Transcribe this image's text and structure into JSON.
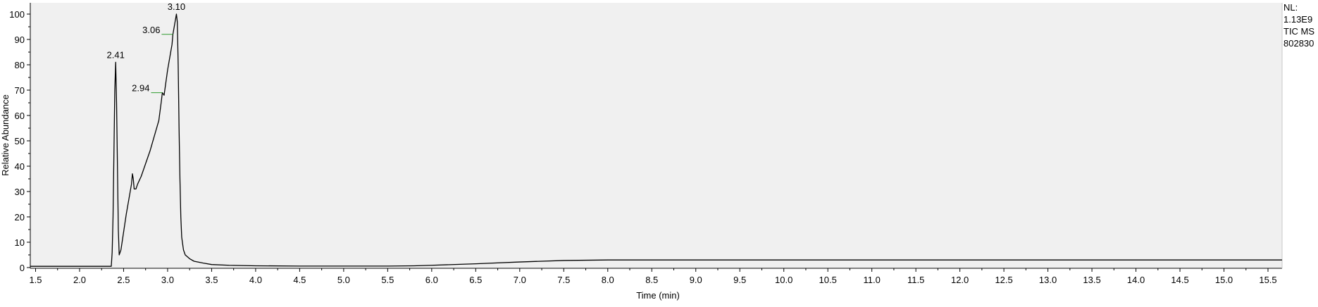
{
  "chart_data": {
    "type": "line",
    "xlabel": "Time (min)",
    "ylabel": "Relative Abundance",
    "xlim": [
      1.44,
      15.66
    ],
    "ylim": [
      0,
      100
    ],
    "x_ticks": [
      "1.5",
      "2.0",
      "2.5",
      "3.0",
      "3.5",
      "4.0",
      "4.5",
      "5.0",
      "5.5",
      "6.0",
      "6.5",
      "7.0",
      "7.5",
      "8.0",
      "8.5",
      "9.0",
      "9.5",
      "10.0",
      "10.5",
      "11.0",
      "11.5",
      "12.0",
      "12.5",
      "13.0",
      "13.5",
      "14.0",
      "14.5",
      "15.0",
      "15.5"
    ],
    "y_ticks": [
      "0",
      "10",
      "20",
      "30",
      "40",
      "50",
      "60",
      "70",
      "80",
      "90",
      "100"
    ],
    "info_lines": [
      "NL:",
      "1.13E9",
      "TIC  MS",
      "802830"
    ],
    "peak_labels": [
      {
        "text": "2.41",
        "x": 2.41,
        "y": 81
      },
      {
        "text": "2.94",
        "x": 2.94,
        "y": 69
      },
      {
        "text": "3.06",
        "x": 3.06,
        "y": 92
      },
      {
        "text": "3.10",
        "x": 3.1,
        "y": 100
      }
    ],
    "series": [
      {
        "color": "#000000",
        "x": [
          1.44,
          2.36,
          2.37,
          2.38,
          2.39,
          2.4,
          2.41,
          2.42,
          2.43,
          2.44,
          2.45,
          2.47,
          2.5,
          2.53,
          2.56,
          2.59,
          2.6,
          2.61,
          2.62,
          2.64,
          2.66,
          2.7,
          2.75,
          2.8,
          2.85,
          2.9,
          2.93,
          2.94,
          2.96,
          3.0,
          3.03,
          3.05,
          3.06,
          3.08,
          3.1,
          3.11,
          3.12,
          3.13,
          3.14,
          3.15,
          3.16,
          3.18,
          3.2,
          3.25,
          3.3,
          3.4,
          3.5,
          3.7,
          4.0,
          4.5,
          5.0,
          5.5,
          5.8,
          6.0,
          6.5,
          7.0,
          7.5,
          8.0,
          9.0,
          10.0,
          11.0,
          12.0,
          13.0,
          14.0,
          15.0,
          15.66
        ],
        "y": [
          0.5,
          0.5,
          6,
          20,
          45,
          70,
          81,
          65,
          40,
          15,
          5,
          7,
          14,
          21,
          27,
          33,
          37,
          35,
          31,
          31,
          33,
          36,
          41,
          46,
          52,
          58,
          66,
          69,
          68,
          78,
          84,
          88,
          92,
          96,
          100,
          97,
          80,
          55,
          35,
          20,
          12,
          7,
          5,
          3.5,
          2.5,
          1.8,
          1.2,
          0.9,
          0.7,
          0.6,
          0.6,
          0.6,
          0.7,
          0.9,
          1.5,
          2.2,
          2.8,
          3.0,
          3.0,
          3.0,
          3.0,
          3.0,
          3.0,
          3.0,
          3.0,
          3.0
        ]
      }
    ]
  }
}
